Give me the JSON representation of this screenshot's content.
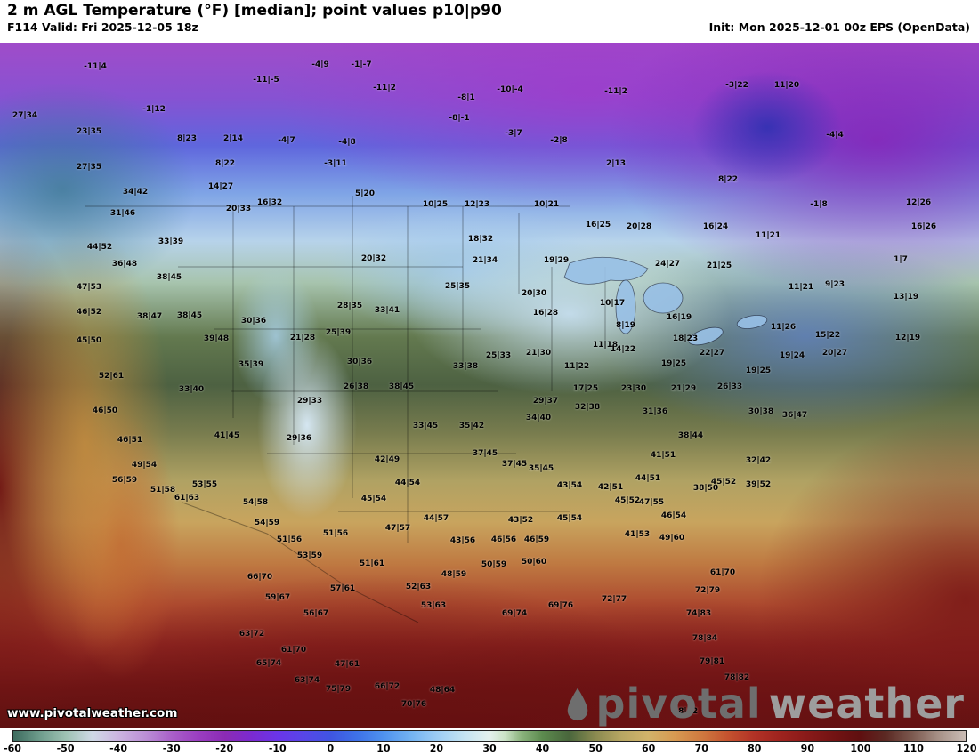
{
  "header": {
    "title": "2 m AGL Temperature (°F) [median]; point values p10|p90",
    "left_info": "F114 Valid: Fri 2025-12-05 18z",
    "right_info": "Init: Mon 2025-12-01 00z EPS (OpenData)"
  },
  "watermark": "www.pivotalweather.com",
  "logo": {
    "text_main": "pivotal",
    "text_sub": "weather"
  },
  "colorbar": {
    "unit": "°F",
    "ticks": [
      -60,
      -50,
      -40,
      -30,
      -20,
      -10,
      0,
      10,
      20,
      30,
      40,
      50,
      60,
      70,
      80,
      90,
      100,
      110,
      120
    ],
    "stops": [
      [
        -60,
        "#3d6b5e"
      ],
      [
        -55,
        "#6e9c8c"
      ],
      [
        -50,
        "#9fc2b4"
      ],
      [
        -45,
        "#cfd9e6"
      ],
      [
        -40,
        "#cbb3e0"
      ],
      [
        -35,
        "#bb8fd6"
      ],
      [
        -30,
        "#a95fc9"
      ],
      [
        -25,
        "#9a3ec0"
      ],
      [
        -20,
        "#8b2bb5"
      ],
      [
        -15,
        "#7b2ad0"
      ],
      [
        -10,
        "#6a35e8"
      ],
      [
        -5,
        "#5746e8"
      ],
      [
        0,
        "#3f55e2"
      ],
      [
        5,
        "#3e72e8"
      ],
      [
        10,
        "#4f92ee"
      ],
      [
        15,
        "#72b2f2"
      ],
      [
        20,
        "#9cccf4"
      ],
      [
        25,
        "#c2e2f2"
      ],
      [
        30,
        "#e4f1ee"
      ],
      [
        33,
        "#c9e2c4"
      ],
      [
        36,
        "#8cb47e"
      ],
      [
        40,
        "#5c8a4e"
      ],
      [
        45,
        "#49663c"
      ],
      [
        50,
        "#8a8a50"
      ],
      [
        55,
        "#b8a763"
      ],
      [
        60,
        "#d2b36a"
      ],
      [
        65,
        "#d79a52"
      ],
      [
        70,
        "#cf7a40"
      ],
      [
        75,
        "#c4532f"
      ],
      [
        80,
        "#b23226"
      ],
      [
        85,
        "#9e231e"
      ],
      [
        90,
        "#891a19"
      ],
      [
        95,
        "#731313"
      ],
      [
        100,
        "#5f0f10"
      ],
      [
        105,
        "#5c2a24"
      ],
      [
        110,
        "#7d5a50"
      ],
      [
        115,
        "#a89288"
      ],
      [
        120,
        "#cbbdb6"
      ]
    ]
  },
  "map": {
    "points": [
      [
        107,
        75,
        "-11|4"
      ],
      [
        299,
        90,
        "-11|-5"
      ],
      [
        360,
        73,
        "-4|9"
      ],
      [
        406,
        73,
        "-1|-7"
      ],
      [
        432,
        99,
        "-11|2"
      ],
      [
        524,
        110,
        "-8|1"
      ],
      [
        573,
        101,
        "-10|-4"
      ],
      [
        692,
        103,
        "-11|2"
      ],
      [
        828,
        96,
        "-3|22"
      ],
      [
        884,
        96,
        "11|20"
      ],
      [
        28,
        130,
        "27|34"
      ],
      [
        173,
        123,
        "-1|12"
      ],
      [
        100,
        148,
        "23|35"
      ],
      [
        210,
        156,
        "8|23"
      ],
      [
        262,
        156,
        "2|14"
      ],
      [
        322,
        158,
        "-4|7"
      ],
      [
        390,
        160,
        "-4|8"
      ],
      [
        516,
        133,
        "-8|-1"
      ],
      [
        577,
        150,
        "-3|7"
      ],
      [
        628,
        158,
        "-2|8"
      ],
      [
        938,
        152,
        "-4|4"
      ],
      [
        100,
        188,
        "27|35"
      ],
      [
        253,
        184,
        "8|22"
      ],
      [
        377,
        184,
        "-3|11"
      ],
      [
        692,
        184,
        "2|13"
      ],
      [
        818,
        202,
        "8|22"
      ],
      [
        152,
        216,
        "34|42"
      ],
      [
        248,
        210,
        "14|27"
      ],
      [
        410,
        218,
        "5|20"
      ],
      [
        138,
        240,
        "31|46"
      ],
      [
        268,
        235,
        "20|33"
      ],
      [
        303,
        228,
        "16|32"
      ],
      [
        489,
        230,
        "10|25"
      ],
      [
        536,
        230,
        "12|23"
      ],
      [
        614,
        230,
        "10|21"
      ],
      [
        920,
        230,
        "-1|8"
      ],
      [
        1032,
        228,
        "12|26"
      ],
      [
        672,
        253,
        "16|25"
      ],
      [
        718,
        255,
        "20|28"
      ],
      [
        804,
        255,
        "16|24"
      ],
      [
        863,
        265,
        "11|21"
      ],
      [
        1038,
        255,
        "16|26"
      ],
      [
        112,
        278,
        "44|52"
      ],
      [
        192,
        272,
        "33|39"
      ],
      [
        540,
        269,
        "18|32"
      ],
      [
        1012,
        292,
        "1|7"
      ],
      [
        140,
        297,
        "36|48"
      ],
      [
        420,
        291,
        "20|32"
      ],
      [
        545,
        293,
        "21|34"
      ],
      [
        625,
        293,
        "19|29"
      ],
      [
        750,
        297,
        "24|27"
      ],
      [
        808,
        299,
        "21|25"
      ],
      [
        100,
        323,
        "47|53"
      ],
      [
        190,
        312,
        "38|45"
      ],
      [
        514,
        322,
        "25|35"
      ],
      [
        600,
        330,
        "20|30"
      ],
      [
        688,
        341,
        "10|17"
      ],
      [
        900,
        323,
        "11|21"
      ],
      [
        938,
        320,
        "9|23"
      ],
      [
        1018,
        334,
        "13|19"
      ],
      [
        100,
        351,
        "46|52"
      ],
      [
        168,
        356,
        "38|47"
      ],
      [
        213,
        355,
        "38|45"
      ],
      [
        285,
        361,
        "30|36"
      ],
      [
        393,
        344,
        "28|35"
      ],
      [
        435,
        349,
        "33|41"
      ],
      [
        613,
        352,
        "16|28"
      ],
      [
        763,
        357,
        "16|19"
      ],
      [
        880,
        368,
        "11|26"
      ],
      [
        930,
        377,
        "15|22"
      ],
      [
        1020,
        380,
        "12|19"
      ],
      [
        100,
        383,
        "45|50"
      ],
      [
        243,
        381,
        "39|48"
      ],
      [
        340,
        380,
        "21|28"
      ],
      [
        380,
        374,
        "25|39"
      ],
      [
        282,
        410,
        "35|39"
      ],
      [
        404,
        407,
        "30|36"
      ],
      [
        703,
        366,
        "8|19"
      ],
      [
        680,
        388,
        "11|18"
      ],
      [
        523,
        412,
        "33|38"
      ],
      [
        560,
        400,
        "25|33"
      ],
      [
        605,
        397,
        "21|30"
      ],
      [
        648,
        412,
        "11|22"
      ],
      [
        700,
        393,
        "14|22"
      ],
      [
        757,
        409,
        "19|25"
      ],
      [
        770,
        381,
        "18|23"
      ],
      [
        800,
        397,
        "22|27"
      ],
      [
        890,
        400,
        "19|24"
      ],
      [
        938,
        397,
        "20|27"
      ],
      [
        852,
        417,
        "19|25"
      ],
      [
        125,
        423,
        "52|61"
      ],
      [
        215,
        438,
        "33|40"
      ],
      [
        400,
        435,
        "26|38"
      ],
      [
        348,
        451,
        "29|33"
      ],
      [
        451,
        435,
        "38|45"
      ],
      [
        613,
        451,
        "29|37"
      ],
      [
        658,
        437,
        "17|25"
      ],
      [
        712,
        437,
        "23|30"
      ],
      [
        768,
        437,
        "21|29"
      ],
      [
        820,
        435,
        "26|33"
      ],
      [
        118,
        462,
        "46|50"
      ],
      [
        146,
        495,
        "46|51"
      ],
      [
        255,
        490,
        "41|45"
      ],
      [
        336,
        493,
        "29|36"
      ],
      [
        478,
        479,
        "33|45"
      ],
      [
        530,
        479,
        "35|42"
      ],
      [
        605,
        470,
        "34|40"
      ],
      [
        660,
        458,
        "32|38"
      ],
      [
        736,
        463,
        "31|36"
      ],
      [
        855,
        463,
        "30|38"
      ],
      [
        893,
        467,
        "36|47"
      ],
      [
        776,
        490,
        "38|44"
      ],
      [
        545,
        510,
        "37|45"
      ],
      [
        578,
        522,
        "37|45"
      ],
      [
        608,
        527,
        "35|45"
      ],
      [
        745,
        512,
        "41|51"
      ],
      [
        852,
        518,
        "32|42"
      ],
      [
        640,
        546,
        "43|54"
      ],
      [
        686,
        548,
        "42|51"
      ],
      [
        728,
        538,
        "44|51"
      ],
      [
        705,
        563,
        "45|52"
      ],
      [
        732,
        565,
        "47|55"
      ],
      [
        757,
        580,
        "46|54"
      ],
      [
        716,
        601,
        "41|53"
      ],
      [
        755,
        605,
        "49|60"
      ],
      [
        793,
        549,
        "38|50"
      ],
      [
        813,
        542,
        "45|52"
      ],
      [
        852,
        545,
        "39|52"
      ],
      [
        435,
        517,
        "42|49"
      ],
      [
        458,
        543,
        "44|54"
      ],
      [
        420,
        561,
        "45|54"
      ],
      [
        447,
        594,
        "47|57"
      ],
      [
        490,
        583,
        "44|57"
      ],
      [
        520,
        608,
        "43|56"
      ],
      [
        510,
        646,
        "48|59"
      ],
      [
        555,
        635,
        "50|59"
      ],
      [
        470,
        660,
        "52|63"
      ],
      [
        487,
        681,
        "53|63"
      ],
      [
        600,
        632,
        "50|60"
      ],
      [
        585,
        585,
        "43|52"
      ],
      [
        566,
        607,
        "46|56"
      ],
      [
        603,
        607,
        "46|59"
      ],
      [
        640,
        583,
        "45|54"
      ],
      [
        162,
        523,
        "49|54"
      ],
      [
        140,
        540,
        "56|59"
      ],
      [
        183,
        551,
        "51|58"
      ],
      [
        230,
        545,
        "53|55"
      ],
      [
        210,
        560,
        "61|63"
      ],
      [
        287,
        565,
        "54|58"
      ],
      [
        300,
        588,
        "54|59"
      ],
      [
        325,
        607,
        "51|56"
      ],
      [
        377,
        600,
        "51|56"
      ],
      [
        348,
        625,
        "53|59"
      ],
      [
        418,
        634,
        "51|61"
      ],
      [
        385,
        662,
        "57|61"
      ],
      [
        292,
        649,
        "66|70"
      ],
      [
        312,
        672,
        "59|67"
      ],
      [
        355,
        690,
        "56|67"
      ],
      [
        283,
        713,
        "63|72"
      ],
      [
        330,
        731,
        "61|70"
      ],
      [
        302,
        746,
        "65|74"
      ],
      [
        390,
        747,
        "47|61"
      ],
      [
        345,
        765,
        "63|74"
      ],
      [
        380,
        775,
        "75|79"
      ],
      [
        435,
        772,
        "66|72"
      ],
      [
        465,
        792,
        "70|76"
      ],
      [
        497,
        776,
        "48|64"
      ],
      [
        578,
        690,
        "69|74"
      ],
      [
        630,
        681,
        "69|76"
      ],
      [
        690,
        674,
        "72|77"
      ],
      [
        812,
        644,
        "61|70"
      ],
      [
        795,
        664,
        "72|79"
      ],
      [
        785,
        690,
        "74|83"
      ],
      [
        792,
        718,
        "78|84"
      ],
      [
        800,
        744,
        "79|81"
      ],
      [
        828,
        762,
        "78|82"
      ],
      [
        770,
        800,
        "78|82"
      ]
    ]
  }
}
